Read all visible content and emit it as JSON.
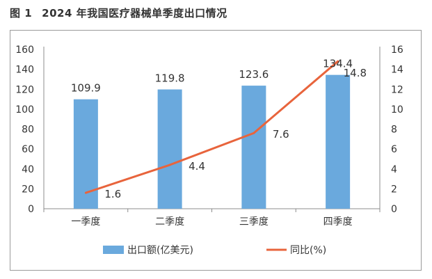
{
  "figure": {
    "number": "图 1",
    "title": "2024 年我国医疗器械单季度出口情况"
  },
  "chart_data": {
    "type": "bar+line",
    "categories": [
      "一季度",
      "二季度",
      "三季度",
      "四季度"
    ],
    "series": [
      {
        "name": "出口额(亿美元)",
        "type": "bar",
        "axis": "left",
        "color": "#6aa9dd",
        "values": [
          109.9,
          119.8,
          123.6,
          134.4
        ],
        "labels": [
          "109.9",
          "119.8",
          "123.6",
          "134.4"
        ]
      },
      {
        "name": "同比(%)",
        "type": "line",
        "axis": "right",
        "color": "#e8643c",
        "values": [
          1.6,
          4.4,
          7.6,
          14.8
        ],
        "labels": [
          "1.6",
          "4.4",
          "7.6",
          "14.8"
        ]
      }
    ],
    "y_left": {
      "range": [
        0,
        160
      ],
      "ticks": [
        "0",
        "20",
        "40",
        "60",
        "80",
        "100",
        "120",
        "140",
        "160"
      ]
    },
    "y_right": {
      "range": [
        0,
        16
      ],
      "ticks": [
        "0",
        "2",
        "4",
        "6",
        "8",
        "10",
        "12",
        "14",
        "16"
      ]
    },
    "grid": false,
    "legend": "bottom-center"
  }
}
